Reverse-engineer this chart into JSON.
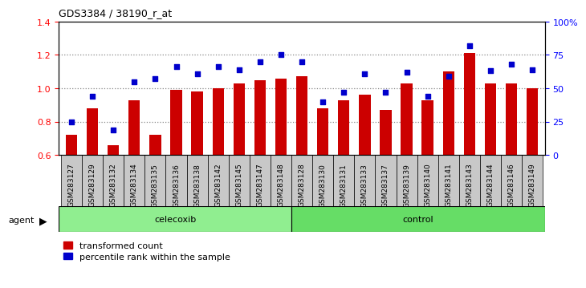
{
  "title": "GDS3384 / 38190_r_at",
  "categories": [
    "GSM283127",
    "GSM283129",
    "GSM283132",
    "GSM283134",
    "GSM283135",
    "GSM283136",
    "GSM283138",
    "GSM283142",
    "GSM283145",
    "GSM283147",
    "GSM283148",
    "GSM283128",
    "GSM283130",
    "GSM283131",
    "GSM283133",
    "GSM283137",
    "GSM283139",
    "GSM283140",
    "GSM283141",
    "GSM283143",
    "GSM283144",
    "GSM283146",
    "GSM283149"
  ],
  "bar_values": [
    0.72,
    0.88,
    0.66,
    0.93,
    0.72,
    0.99,
    0.98,
    1.0,
    1.03,
    1.05,
    1.06,
    1.07,
    0.88,
    0.93,
    0.96,
    0.87,
    1.03,
    0.93,
    1.1,
    1.21,
    1.03,
    1.03,
    1.0
  ],
  "dot_values_pct": [
    25,
    44,
    19,
    55,
    57,
    66,
    61,
    66,
    64,
    70,
    75,
    70,
    40,
    47,
    61,
    47,
    62,
    44,
    59,
    82,
    63,
    68,
    64
  ],
  "celecoxib_count": 11,
  "control_count": 12,
  "bar_color": "#cc0000",
  "dot_color": "#0000cc",
  "ylim_left": [
    0.6,
    1.4
  ],
  "ylim_right": [
    0,
    100
  ],
  "yticks_left": [
    0.6,
    0.8,
    1.0,
    1.2,
    1.4
  ],
  "yticks_right": [
    0,
    25,
    50,
    75,
    100
  ],
  "ytick_labels_right": [
    "0",
    "25",
    "50",
    "75",
    "100%"
  ],
  "hlines": [
    0.8,
    1.0,
    1.2
  ],
  "plot_bg": "#ffffff",
  "celecoxib_color": "#90EE90",
  "control_color": "#66DD66",
  "agent_label": "agent",
  "celecoxib_label": "celecoxib",
  "control_label": "control",
  "legend_bar": "transformed count",
  "legend_dot": "percentile rank within the sample",
  "tick_bg_color": "#c8c8c8"
}
